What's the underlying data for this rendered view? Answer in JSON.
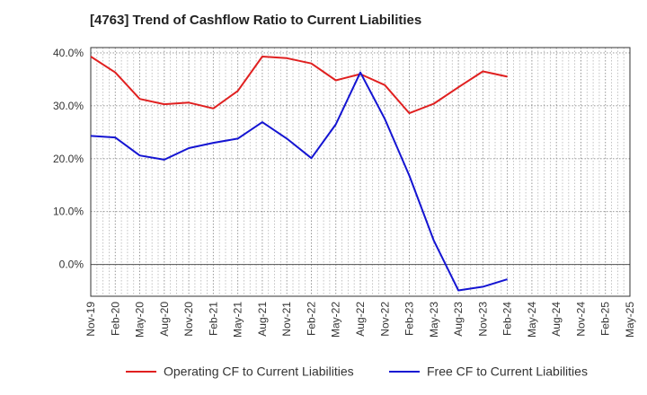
{
  "chart_data": {
    "type": "line",
    "title": "[4763]  Trend of Cashflow Ratio to Current Liabilities",
    "xlabel": "",
    "ylabel": "",
    "x": [
      "Nov-19",
      "Feb-20",
      "May-20",
      "Aug-20",
      "Nov-20",
      "Feb-21",
      "May-21",
      "Aug-21",
      "Nov-21",
      "Feb-22",
      "May-22",
      "Aug-22",
      "Nov-22",
      "Feb-23",
      "May-23",
      "Aug-23",
      "Nov-23",
      "Feb-24",
      "May-24",
      "Aug-24",
      "Nov-24",
      "Feb-25",
      "May-25"
    ],
    "y_tick_labels": [
      "40.0%",
      "30.0%",
      "20.0%",
      "10.0%",
      "0.0%"
    ],
    "y_tick_values": [
      40,
      30,
      20,
      10,
      0
    ],
    "ylim": [
      -6,
      41
    ],
    "grid": true,
    "legend_position": "bottom",
    "series": [
      {
        "name": "Operating CF to Current Liabilities",
        "color": "#e02020",
        "values": [
          39.3,
          36.3,
          31.3,
          30.3,
          30.6,
          29.5,
          32.8,
          39.3,
          39.0,
          38.0,
          34.8,
          36.0,
          33.9,
          28.6,
          30.4,
          33.5,
          36.5,
          35.5,
          null,
          null,
          null,
          null,
          null
        ]
      },
      {
        "name": "Free CF to Current Liabilities",
        "color": "#1414d2",
        "values": [
          24.3,
          24.0,
          20.6,
          19.8,
          22.0,
          23.0,
          23.8,
          26.9,
          23.8,
          20.1,
          26.5,
          36.3,
          27.5,
          16.8,
          4.5,
          -4.9,
          -4.2,
          -2.8,
          null,
          null,
          null,
          null,
          null
        ]
      }
    ]
  }
}
